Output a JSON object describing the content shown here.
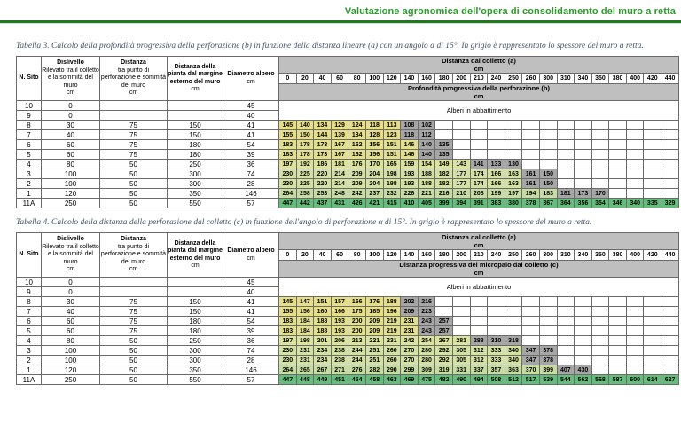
{
  "header": {
    "title": "Valutazione agronomica dell'opera di consolidamento del muro a retta",
    "accent_color": "#2b9b2b",
    "rule_color": "#1f7a1f"
  },
  "colors": {
    "wall_gray": "#A6A6A6",
    "band_gray": "#BFBFBF"
  },
  "left_headers": [
    {
      "title": "N. Sito",
      "sub": "",
      "unit": ""
    },
    {
      "title": "Dislivello",
      "sub": "Rilevato tra il colletto e la sommità del muro",
      "unit": "cm"
    },
    {
      "title": "Distanza",
      "sub": "tra punto di perforazione e sommità del muro",
      "unit": "cm"
    },
    {
      "title": "Distanza della pianta dal margine esterno del muro",
      "sub": "",
      "unit": "cm"
    },
    {
      "title": "Diametro albero",
      "sub": "",
      "unit": "cm"
    }
  ],
  "distances": [
    0,
    20,
    40,
    60,
    80,
    100,
    120,
    140,
    160,
    180,
    200,
    210,
    240,
    250,
    260,
    300,
    310,
    340,
    350,
    380,
    400,
    420,
    440
  ],
  "tables": [
    {
      "caption": "Tabella 3. Calcolo della profondità progressiva della perforazione (b) in funzione della distanza lineare (a) con un angolo α di 15°. In grigio è rappresentato lo spessore del muro a retta.",
      "distance_header": {
        "title": "Distanza dal colletto (a)",
        "unit": "cm"
      },
      "value_header": {
        "title": "Profondità progressiva della perforazione (b)",
        "unit": "cm"
      },
      "felled_label": "Alberi in abbattimento",
      "rows": [
        {
          "sito": "10",
          "dislivello": "0",
          "distanza": "",
          "pianta": "",
          "diametro": "45",
          "felled": true
        },
        {
          "sito": "9",
          "dislivello": "0",
          "distanza": "",
          "pianta": "",
          "diametro": "40",
          "felled": true
        },
        {
          "sito": "8",
          "dislivello": "30",
          "distanza": "75",
          "pianta": "150",
          "diametro": "41",
          "color": "#E6DF86",
          "gray_from": 7,
          "values": [
            145,
            140,
            134,
            129,
            124,
            118,
            113,
            108,
            102
          ]
        },
        {
          "sito": "7",
          "dislivello": "40",
          "distanza": "75",
          "pianta": "150",
          "diametro": "41",
          "color": "#E6DF86",
          "gray_from": 7,
          "values": [
            155,
            150,
            144,
            139,
            134,
            128,
            123,
            118,
            112
          ]
        },
        {
          "sito": "6",
          "dislivello": "60",
          "distanza": "75",
          "pianta": "180",
          "diametro": "54",
          "color": "#E2E08C",
          "gray_from": 8,
          "values": [
            183,
            178,
            173,
            167,
            162,
            156,
            151,
            146,
            140,
            135
          ]
        },
        {
          "sito": "5",
          "dislivello": "60",
          "distanza": "75",
          "pianta": "180",
          "diametro": "39",
          "color": "#E2E08C",
          "gray_from": 8,
          "values": [
            183,
            178,
            173,
            167,
            162,
            156,
            151,
            146,
            140,
            135
          ]
        },
        {
          "sito": "4",
          "dislivello": "80",
          "distanza": "50",
          "pianta": "250",
          "diametro": "36",
          "color": "#DCE49B",
          "gray_from": 11,
          "values": [
            197,
            192,
            186,
            181,
            176,
            170,
            165,
            159,
            154,
            149,
            143,
            141,
            133,
            130
          ]
        },
        {
          "sito": "3",
          "dislivello": "100",
          "distanza": "50",
          "pianta": "300",
          "diametro": "74",
          "color": "#D3E2A3",
          "gray_from": 14,
          "values": [
            230,
            225,
            220,
            214,
            209,
            204,
            198,
            193,
            188,
            182,
            177,
            174,
            166,
            163,
            161,
            150
          ]
        },
        {
          "sito": "2",
          "dislivello": "100",
          "distanza": "50",
          "pianta": "300",
          "diametro": "28",
          "color": "#D3E2A3",
          "gray_from": 14,
          "values": [
            230,
            225,
            220,
            214,
            209,
            204,
            198,
            193,
            188,
            182,
            177,
            174,
            166,
            163,
            161,
            150
          ]
        },
        {
          "sito": "1",
          "dislivello": "120",
          "distanza": "50",
          "pianta": "350",
          "diametro": "146",
          "color": "#C7DD9F",
          "gray_from": 16,
          "values": [
            264,
            258,
            253,
            248,
            242,
            237,
            232,
            226,
            221,
            216,
            210,
            208,
            199,
            197,
            194,
            183,
            181,
            173,
            170
          ]
        },
        {
          "sito": "11A",
          "dislivello": "250",
          "distanza": "50",
          "pianta": "550",
          "diametro": "57",
          "color": "#63BE7B",
          "gray_from": null,
          "values": [
            447,
            442,
            437,
            431,
            426,
            421,
            415,
            410,
            405,
            399,
            394,
            391,
            383,
            380,
            378,
            367,
            364,
            356,
            354,
            346,
            340,
            335,
            329
          ]
        }
      ]
    },
    {
      "caption": "Tabella 4. Calcolo della distanza della perforazione dal colletto (c) in funzione dell'angolo di perforazione α di 15°. In grigio è rappresentato lo spessore del muro a retta.",
      "distance_header": {
        "title": "Distanza dal colletto (a)",
        "unit": "cm"
      },
      "value_header": {
        "title": "Distanza progressiva del micropalo dal colletto (c)",
        "unit": "cm"
      },
      "felled_label": "Alberi in abbattimento",
      "rows": [
        {
          "sito": "10",
          "dislivello": "0",
          "distanza": "",
          "pianta": "",
          "diametro": "45",
          "felled": true
        },
        {
          "sito": "9",
          "dislivello": "0",
          "distanza": "",
          "pianta": "",
          "diametro": "40",
          "felled": true
        },
        {
          "sito": "8",
          "dislivello": "30",
          "distanza": "75",
          "pianta": "150",
          "diametro": "41",
          "color": "#E6DF86",
          "gray_from": 7,
          "values": [
            145,
            147,
            151,
            157,
            166,
            176,
            188,
            202,
            216
          ]
        },
        {
          "sito": "7",
          "dislivello": "40",
          "distanza": "75",
          "pianta": "150",
          "diametro": "41",
          "color": "#E6DF86",
          "gray_from": 7,
          "values": [
            155,
            156,
            160,
            166,
            175,
            185,
            196,
            209,
            223
          ]
        },
        {
          "sito": "6",
          "dislivello": "60",
          "distanza": "75",
          "pianta": "180",
          "diametro": "54",
          "color": "#E2E08C",
          "gray_from": 8,
          "values": [
            183,
            184,
            188,
            193,
            200,
            209,
            219,
            231,
            243,
            257
          ]
        },
        {
          "sito": "5",
          "dislivello": "60",
          "distanza": "75",
          "pianta": "180",
          "diametro": "39",
          "color": "#E2E08C",
          "gray_from": 8,
          "values": [
            183,
            184,
            188,
            193,
            200,
            209,
            219,
            231,
            243,
            257
          ]
        },
        {
          "sito": "4",
          "dislivello": "80",
          "distanza": "50",
          "pianta": "250",
          "diametro": "36",
          "color": "#DCE49B",
          "gray_from": 11,
          "values": [
            197,
            198,
            201,
            206,
            213,
            221,
            231,
            242,
            254,
            267,
            281,
            288,
            310,
            318
          ]
        },
        {
          "sito": "3",
          "dislivello": "100",
          "distanza": "50",
          "pianta": "300",
          "diametro": "74",
          "color": "#D3E2A3",
          "gray_from": 14,
          "values": [
            230,
            231,
            234,
            238,
            244,
            251,
            260,
            270,
            280,
            292,
            305,
            312,
            333,
            340,
            347,
            378
          ]
        },
        {
          "sito": "2",
          "dislivello": "100",
          "distanza": "50",
          "pianta": "300",
          "diametro": "28",
          "color": "#D3E2A3",
          "gray_from": 14,
          "values": [
            230,
            231,
            234,
            238,
            244,
            251,
            260,
            270,
            280,
            292,
            305,
            312,
            333,
            340,
            347,
            378
          ]
        },
        {
          "sito": "1",
          "dislivello": "120",
          "distanza": "50",
          "pianta": "350",
          "diametro": "146",
          "color": "#C7DD9F",
          "gray_from": 16,
          "values": [
            264,
            265,
            267,
            271,
            276,
            282,
            290,
            299,
            309,
            319,
            331,
            337,
            357,
            363,
            370,
            399,
            407,
            430
          ]
        },
        {
          "sito": "11A",
          "dislivello": "250",
          "distanza": "50",
          "pianta": "550",
          "diametro": "57",
          "color": "#63BE7B",
          "gray_from": null,
          "values": [
            447,
            448,
            449,
            451,
            454,
            458,
            463,
            469,
            475,
            482,
            490,
            494,
            508,
            512,
            517,
            539,
            544,
            562,
            568,
            587,
            600,
            614,
            627
          ]
        }
      ]
    }
  ]
}
